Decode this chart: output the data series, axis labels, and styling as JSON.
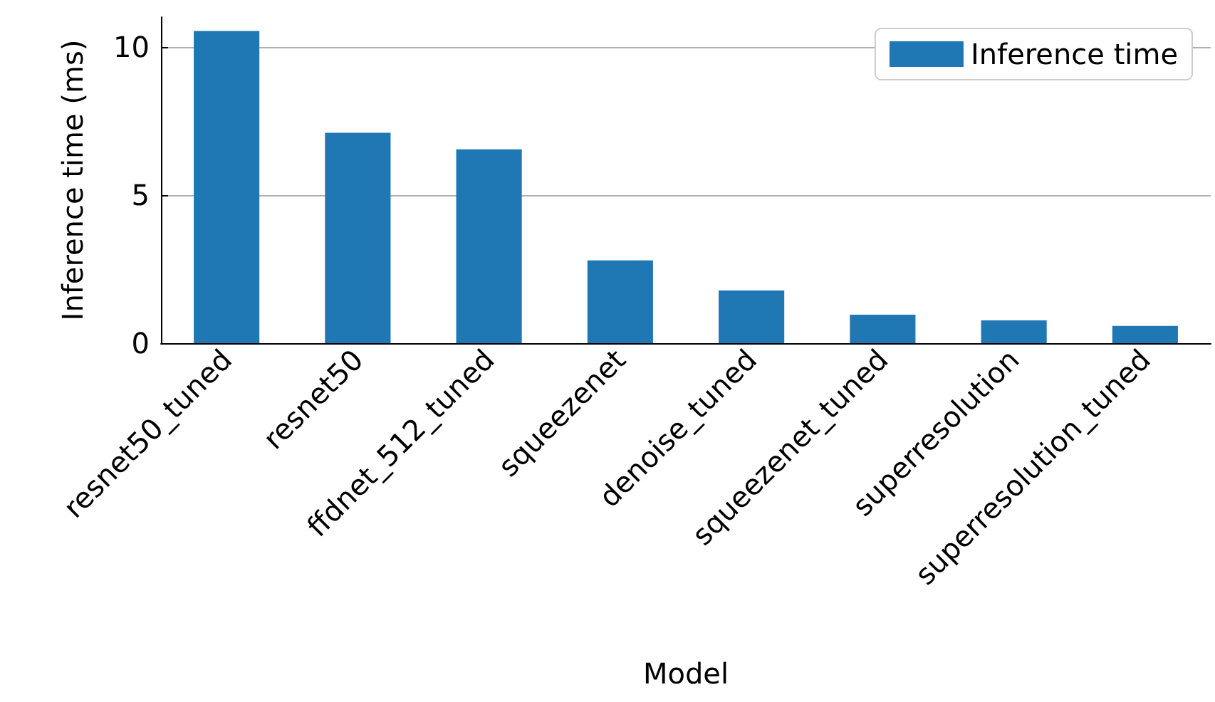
{
  "chart_data": {
    "type": "bar",
    "xlabel": "Model",
    "ylabel": "Inference time (ms)",
    "categories": [
      "resnet50_tuned",
      "resnet50",
      "ffdnet_512_tuned",
      "squeezenet",
      "denoise_tuned",
      "squeezenet_tuned",
      "superresolution",
      "superresolution_tuned"
    ],
    "series": [
      {
        "name": "Inference time",
        "color": "#1f77b4",
        "values": [
          10.53,
          7.1,
          6.54,
          2.79,
          1.78,
          0.96,
          0.77,
          0.58
        ]
      }
    ],
    "ylim": [
      0,
      11
    ],
    "yticks": [
      0,
      5,
      10
    ],
    "grid": "y",
    "legend": "top right"
  }
}
